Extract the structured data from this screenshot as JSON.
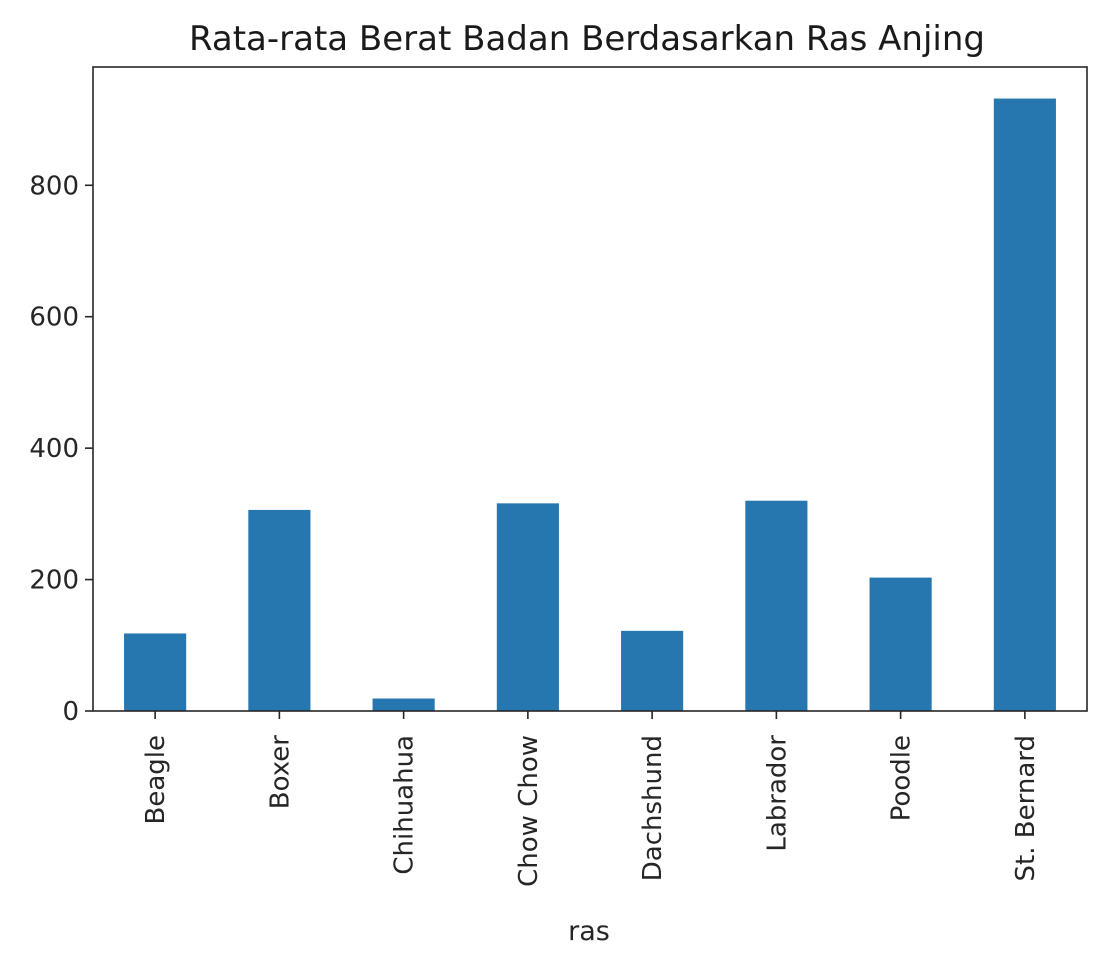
{
  "chart_data": {
    "type": "bar",
    "title": "Rata-rata Berat Badan Berdasarkan Ras Anjing",
    "xlabel": "ras",
    "ylabel": "",
    "categories": [
      "Beagle",
      "Boxer",
      "Chihuahua",
      "Chow Chow",
      "Dachshund",
      "Labrador",
      "Poodle",
      "St. Bernard"
    ],
    "values": [
      118,
      306,
      19,
      316,
      122,
      320,
      203,
      932
    ],
    "yticks": [
      0,
      200,
      400,
      600,
      800
    ],
    "ylim": [
      0,
      980
    ],
    "grid": false,
    "colors": {
      "bar": "#2677b0",
      "axis": "#262626"
    }
  }
}
